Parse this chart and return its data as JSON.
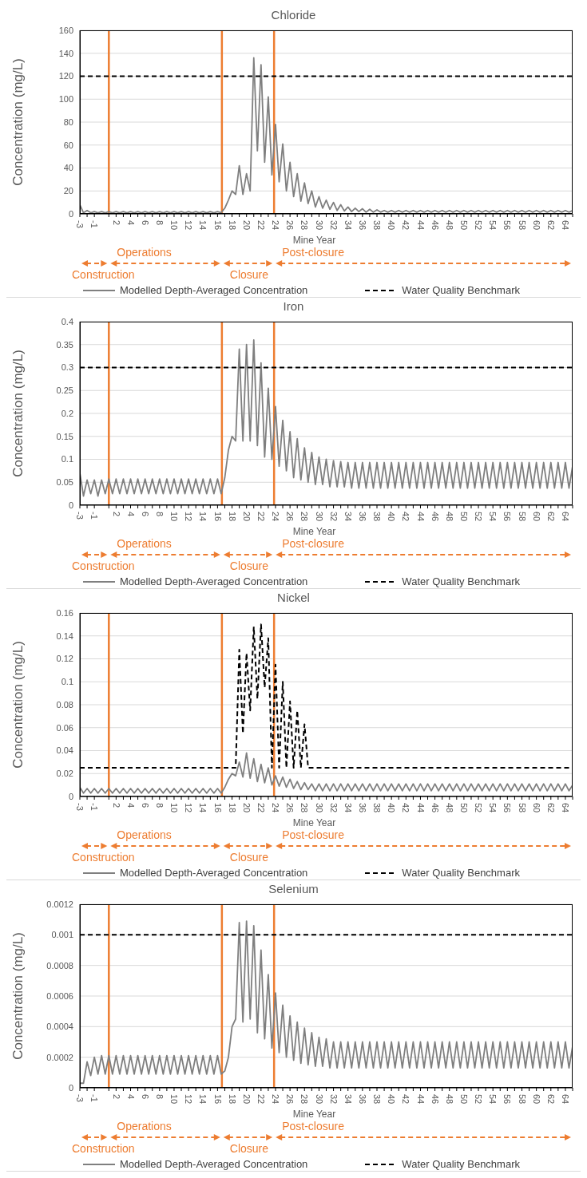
{
  "chart_data": [
    {
      "type": "line",
      "title": "Chloride",
      "xlabel": "Mine Year",
      "ylabel": "Concentration (mg/L)",
      "xlim": [
        -3,
        65
      ],
      "ylim": [
        0,
        160
      ],
      "yticks": [
        0,
        20,
        40,
        60,
        80,
        100,
        120,
        140,
        160
      ],
      "grid": "y",
      "legend": "bottom",
      "xticks": [
        -3,
        {
          "value": -2,
          "label": null
        },
        -1,
        {
          "value": 1,
          "label": null
        },
        2,
        {
          "value": 3,
          "label": null
        },
        4,
        {
          "value": 5,
          "label": null
        },
        6,
        {
          "value": 7,
          "label": null
        },
        8,
        {
          "value": 9,
          "label": null
        },
        10,
        {
          "value": 11,
          "label": null
        },
        12,
        {
          "value": 13,
          "label": null
        },
        14,
        {
          "value": 15,
          "label": null
        },
        16,
        {
          "value": 17,
          "label": null
        },
        18,
        {
          "value": 19,
          "label": null
        },
        20,
        {
          "value": 21,
          "label": null
        },
        22,
        {
          "value": 23,
          "label": null
        },
        24,
        {
          "value": 25,
          "label": null
        },
        26,
        {
          "value": 27,
          "label": null
        },
        28,
        {
          "value": 29,
          "label": null
        },
        30,
        {
          "value": 31,
          "label": null
        },
        32,
        {
          "value": 33,
          "label": null
        },
        34,
        {
          "value": 35,
          "label": null
        },
        36,
        {
          "value": 37,
          "label": null
        },
        38,
        {
          "value": 39,
          "label": null
        },
        40,
        {
          "value": 41,
          "label": null
        },
        42,
        {
          "value": 43,
          "label": null
        },
        44,
        {
          "value": 45,
          "label": null
        },
        46,
        {
          "value": 47,
          "label": null
        },
        48,
        {
          "value": 49,
          "label": null
        },
        50,
        {
          "value": 51,
          "label": null
        },
        52,
        {
          "value": 53,
          "label": null
        },
        54,
        {
          "value": 55,
          "label": null
        },
        56,
        {
          "value": 57,
          "label": null
        },
        58,
        {
          "value": 59,
          "label": null
        },
        60,
        {
          "value": 61,
          "label": null
        },
        62,
        {
          "value": 63,
          "label": null
        },
        64,
        {
          "value": 65,
          "label": null
        }
      ],
      "x": [
        -3,
        -2.5,
        -2,
        -1.5,
        -1,
        -0.5,
        0,
        0.5,
        1,
        1.5,
        2,
        2.5,
        3,
        3.5,
        4,
        4.5,
        5,
        5.5,
        6,
        6.5,
        7,
        7.5,
        8,
        8.5,
        9,
        9.5,
        10,
        10.5,
        11,
        11.5,
        12,
        12.5,
        13,
        13.5,
        14,
        14.5,
        15,
        15.5,
        16,
        16.5,
        17,
        17.5,
        18,
        18.5,
        19,
        19.5,
        20,
        20.5,
        21,
        21.5,
        22,
        22.5,
        23,
        23.5,
        24,
        24.5,
        25,
        25.5,
        26,
        26.5,
        27,
        27.5,
        28,
        28.5,
        29,
        29.5,
        30,
        30.5,
        31,
        31.5,
        32,
        32.5,
        33,
        33.5,
        34,
        34.5,
        35,
        35.5,
        36,
        36.5,
        37,
        37.5,
        38,
        38.5,
        39,
        39.5,
        40,
        40.5,
        41,
        41.5,
        42,
        42.5,
        43,
        43.5,
        44,
        44.5,
        45,
        45.5,
        46,
        46.5,
        47,
        47.5,
        48,
        48.5,
        49,
        49.5,
        50,
        50.5,
        51,
        51.5,
        52,
        52.5,
        53,
        53.5,
        54,
        54.5,
        55,
        55.5,
        56,
        56.5,
        57,
        57.5,
        58,
        58.5,
        59,
        59.5,
        60,
        60.5,
        61,
        61.5,
        62,
        62.5,
        63,
        63.5,
        64,
        64.5,
        65
      ],
      "series": [
        {
          "name": "Modelled Depth-Averaged Concentration",
          "color": "#7f7f7f",
          "line_style": "solid",
          "values": [
            8,
            1,
            3,
            1,
            2,
            1,
            2,
            1,
            2,
            1,
            2,
            1,
            2,
            1,
            2,
            1,
            2,
            1,
            2,
            1,
            2,
            1,
            2,
            1,
            2,
            1,
            2,
            1,
            2,
            1,
            2,
            1,
            2,
            1,
            2,
            1,
            2,
            1,
            2,
            1,
            5,
            12,
            20,
            17,
            42,
            17,
            35,
            20,
            136,
            55,
            130,
            45,
            102,
            34,
            78,
            28,
            61,
            20,
            45,
            15,
            35,
            11,
            27,
            9,
            20,
            6,
            15,
            5,
            12,
            4,
            10,
            3,
            8,
            2.5,
            6,
            2,
            5,
            2,
            4.5,
            1.5,
            4,
            1.5,
            3.5,
            1.5,
            3,
            1.5,
            3,
            1.5,
            3,
            1.5,
            3,
            1.5,
            3,
            1.5,
            3,
            1.5,
            3,
            1.5,
            3,
            1.5,
            3,
            1.5,
            3,
            1.5,
            3,
            1.5,
            3,
            1.5,
            3,
            1.5,
            3,
            1.5,
            3,
            1.5,
            3,
            1.5,
            3,
            1.5,
            3,
            1.5,
            3,
            1.5,
            3,
            1.5,
            3,
            1.5,
            3,
            1.5,
            3,
            1.5,
            3,
            1.5,
            3,
            1.5,
            3,
            1.5,
            3
          ]
        },
        {
          "name": "Water Quality Benchmark",
          "color": "#000000",
          "line_style": "dashed",
          "x": [
            -3,
            65
          ],
          "values": [
            120,
            120
          ]
        }
      ],
      "ref_lines": [
        {
          "axis": "x",
          "value": 1,
          "color": "#ed7d31"
        },
        {
          "axis": "x",
          "value": 16.6,
          "color": "#ed7d31"
        },
        {
          "axis": "x",
          "value": 23.8,
          "color": "#ed7d31"
        }
      ],
      "annotations": [
        "Construction",
        "Operations",
        "Closure",
        "Post-closure"
      ]
    },
    {
      "type": "line",
      "title": "Iron",
      "xlabel": "Mine Year",
      "ylabel": "Concentration (mg/L)",
      "xlim": [
        -3,
        65
      ],
      "ylim": [
        0,
        0.4
      ],
      "yticks": [
        0,
        0.05,
        0.1,
        0.15,
        0.2,
        0.25,
        0.3,
        0.35,
        0.4
      ],
      "grid": "y",
      "legend": "bottom",
      "xticks": [
        -3,
        {
          "value": -2,
          "label": null
        },
        -1,
        {
          "value": 1,
          "label": null
        },
        2,
        {
          "value": 3,
          "label": null
        },
        4,
        {
          "value": 5,
          "label": null
        },
        6,
        {
          "value": 7,
          "label": null
        },
        8,
        {
          "value": 9,
          "label": null
        },
        10,
        {
          "value": 11,
          "label": null
        },
        12,
        {
          "value": 13,
          "label": null
        },
        14,
        {
          "value": 15,
          "label": null
        },
        16,
        {
          "value": 17,
          "label": null
        },
        18,
        {
          "value": 19,
          "label": null
        },
        20,
        {
          "value": 21,
          "label": null
        },
        22,
        {
          "value": 23,
          "label": null
        },
        24,
        {
          "value": 25,
          "label": null
        },
        26,
        {
          "value": 27,
          "label": null
        },
        28,
        {
          "value": 29,
          "label": null
        },
        30,
        {
          "value": 31,
          "label": null
        },
        32,
        {
          "value": 33,
          "label": null
        },
        34,
        {
          "value": 35,
          "label": null
        },
        36,
        {
          "value": 37,
          "label": null
        },
        38,
        {
          "value": 39,
          "label": null
        },
        40,
        {
          "value": 41,
          "label": null
        },
        42,
        {
          "value": 43,
          "label": null
        },
        44,
        {
          "value": 45,
          "label": null
        },
        46,
        {
          "value": 47,
          "label": null
        },
        48,
        {
          "value": 49,
          "label": null
        },
        50,
        {
          "value": 51,
          "label": null
        },
        52,
        {
          "value": 53,
          "label": null
        },
        54,
        {
          "value": 55,
          "label": null
        },
        56,
        {
          "value": 57,
          "label": null
        },
        58,
        {
          "value": 59,
          "label": null
        },
        60,
        {
          "value": 61,
          "label": null
        },
        62,
        {
          "value": 63,
          "label": null
        },
        64,
        {
          "value": 65,
          "label": null
        }
      ],
      "x": [
        -3,
        -2.5,
        -2,
        -1.5,
        -1,
        -0.5,
        0,
        0.5,
        1,
        1.5,
        2,
        2.5,
        3,
        3.5,
        4,
        4.5,
        5,
        5.5,
        6,
        6.5,
        7,
        7.5,
        8,
        8.5,
        9,
        9.5,
        10,
        10.5,
        11,
        11.5,
        12,
        12.5,
        13,
        13.5,
        14,
        14.5,
        15,
        15.5,
        16,
        16.5,
        17,
        17.5,
        18,
        18.5,
        19,
        19.5,
        20,
        20.5,
        21,
        21.5,
        22,
        22.5,
        23,
        23.5,
        24,
        24.5,
        25,
        25.5,
        26,
        26.5,
        27,
        27.5,
        28,
        28.5,
        29,
        29.5,
        30,
        30.5,
        31,
        31.5,
        32,
        32.5,
        33,
        33.5,
        34,
        34.5,
        35,
        35.5,
        36,
        36.5,
        37,
        37.5,
        38,
        38.5,
        39,
        39.5,
        40,
        40.5,
        41,
        41.5,
        42,
        42.5,
        43,
        43.5,
        44,
        44.5,
        45,
        45.5,
        46,
        46.5,
        47,
        47.5,
        48,
        48.5,
        49,
        49.5,
        50,
        50.5,
        51,
        51.5,
        52,
        52.5,
        53,
        53.5,
        54,
        54.5,
        55,
        55.5,
        56,
        56.5,
        57,
        57.5,
        58,
        58.5,
        59,
        59.5,
        60,
        60.5,
        61,
        61.5,
        62,
        62.5,
        63,
        63.5,
        64,
        64.5,
        65
      ],
      "series": [
        {
          "name": "Modelled Depth-Averaged Concentration",
          "color": "#7f7f7f",
          "line_style": "solid",
          "values": [
            0.07,
            0.02,
            0.055,
            0.025,
            0.055,
            0.02,
            0.055,
            0.025,
            0.057,
            0.025,
            0.057,
            0.025,
            0.057,
            0.025,
            0.057,
            0.025,
            0.057,
            0.025,
            0.057,
            0.025,
            0.057,
            0.025,
            0.057,
            0.025,
            0.057,
            0.025,
            0.057,
            0.025,
            0.057,
            0.025,
            0.057,
            0.025,
            0.057,
            0.025,
            0.057,
            0.025,
            0.057,
            0.025,
            0.057,
            0.025,
            0.06,
            0.12,
            0.15,
            0.14,
            0.34,
            0.14,
            0.35,
            0.14,
            0.36,
            0.13,
            0.31,
            0.105,
            0.255,
            0.1,
            0.215,
            0.085,
            0.185,
            0.075,
            0.16,
            0.06,
            0.145,
            0.055,
            0.125,
            0.05,
            0.115,
            0.045,
            0.105,
            0.045,
            0.1,
            0.04,
            0.097,
            0.04,
            0.095,
            0.04,
            0.093,
            0.037,
            0.093,
            0.037,
            0.093,
            0.037,
            0.093,
            0.037,
            0.093,
            0.037,
            0.093,
            0.037,
            0.093,
            0.037,
            0.093,
            0.037,
            0.093,
            0.037,
            0.093,
            0.037,
            0.093,
            0.037,
            0.093,
            0.037,
            0.093,
            0.037,
            0.093,
            0.037,
            0.093,
            0.037,
            0.093,
            0.037,
            0.093,
            0.037,
            0.093,
            0.037,
            0.093,
            0.037,
            0.093,
            0.037,
            0.093,
            0.037,
            0.093,
            0.037,
            0.093,
            0.037,
            0.093,
            0.037,
            0.093,
            0.037,
            0.093,
            0.037,
            0.093,
            0.037,
            0.093,
            0.037,
            0.093,
            0.037,
            0.093,
            0.037,
            0.093,
            0.037,
            0.085
          ]
        },
        {
          "name": "Water Quality Benchmark",
          "color": "#000000",
          "line_style": "dashed",
          "x": [
            -3,
            65
          ],
          "values": [
            0.3,
            0.3
          ]
        }
      ],
      "ref_lines": [
        {
          "axis": "x",
          "value": 1,
          "color": "#ed7d31"
        },
        {
          "axis": "x",
          "value": 16.6,
          "color": "#ed7d31"
        },
        {
          "axis": "x",
          "value": 23.8,
          "color": "#ed7d31"
        }
      ],
      "annotations": [
        "Construction",
        "Operations",
        "Closure",
        "Post-closure"
      ]
    },
    {
      "type": "line",
      "title": "Nickel",
      "xlabel": "Mine Year",
      "ylabel": "Concentration (mg/L)",
      "xlim": [
        -3,
        65
      ],
      "ylim": [
        0,
        0.16
      ],
      "yticks": [
        0,
        0.02,
        0.04,
        0.06,
        0.08,
        0.1,
        0.12,
        0.14,
        0.16
      ],
      "grid": "y",
      "legend": "bottom",
      "xticks": [
        -3,
        {
          "value": -2,
          "label": null
        },
        -1,
        {
          "value": 1,
          "label": null
        },
        2,
        {
          "value": 3,
          "label": null
        },
        4,
        {
          "value": 5,
          "label": null
        },
        6,
        {
          "value": 7,
          "label": null
        },
        8,
        {
          "value": 9,
          "label": null
        },
        10,
        {
          "value": 11,
          "label": null
        },
        12,
        {
          "value": 13,
          "label": null
        },
        14,
        {
          "value": 15,
          "label": null
        },
        16,
        {
          "value": 17,
          "label": null
        },
        18,
        {
          "value": 19,
          "label": null
        },
        20,
        {
          "value": 21,
          "label": null
        },
        22,
        {
          "value": 23,
          "label": null
        },
        24,
        {
          "value": 25,
          "label": null
        },
        26,
        {
          "value": 27,
          "label": null
        },
        28,
        {
          "value": 29,
          "label": null
        },
        30,
        {
          "value": 31,
          "label": null
        },
        32,
        {
          "value": 33,
          "label": null
        },
        34,
        {
          "value": 35,
          "label": null
        },
        36,
        {
          "value": 37,
          "label": null
        },
        38,
        {
          "value": 39,
          "label": null
        },
        40,
        {
          "value": 41,
          "label": null
        },
        42,
        {
          "value": 43,
          "label": null
        },
        44,
        {
          "value": 45,
          "label": null
        },
        46,
        {
          "value": 47,
          "label": null
        },
        48,
        {
          "value": 49,
          "label": null
        },
        50,
        {
          "value": 51,
          "label": null
        },
        52,
        {
          "value": 53,
          "label": null
        },
        54,
        {
          "value": 55,
          "label": null
        },
        56,
        {
          "value": 57,
          "label": null
        },
        58,
        {
          "value": 59,
          "label": null
        },
        60,
        {
          "value": 61,
          "label": null
        },
        62,
        {
          "value": 63,
          "label": null
        },
        64,
        {
          "value": 65,
          "label": null
        }
      ],
      "x": [
        -3,
        -2.5,
        -2,
        -1.5,
        -1,
        -0.5,
        0,
        0.5,
        1,
        1.5,
        2,
        2.5,
        3,
        3.5,
        4,
        4.5,
        5,
        5.5,
        6,
        6.5,
        7,
        7.5,
        8,
        8.5,
        9,
        9.5,
        10,
        10.5,
        11,
        11.5,
        12,
        12.5,
        13,
        13.5,
        14,
        14.5,
        15,
        15.5,
        16,
        16.5,
        17,
        17.5,
        18,
        18.5,
        19,
        19.5,
        20,
        20.5,
        21,
        21.5,
        22,
        22.5,
        23,
        23.5,
        24,
        24.5,
        25,
        25.5,
        26,
        26.5,
        27,
        27.5,
        28,
        28.5,
        29,
        29.5,
        30,
        30.5,
        31,
        31.5,
        32,
        32.5,
        33,
        33.5,
        34,
        34.5,
        35,
        35.5,
        36,
        36.5,
        37,
        37.5,
        38,
        38.5,
        39,
        39.5,
        40,
        40.5,
        41,
        41.5,
        42,
        42.5,
        43,
        43.5,
        44,
        44.5,
        45,
        45.5,
        46,
        46.5,
        47,
        47.5,
        48,
        48.5,
        49,
        49.5,
        50,
        50.5,
        51,
        51.5,
        52,
        52.5,
        53,
        53.5,
        54,
        54.5,
        55,
        55.5,
        56,
        56.5,
        57,
        57.5,
        58,
        58.5,
        59,
        59.5,
        60,
        60.5,
        61,
        61.5,
        62,
        62.5,
        63,
        63.5,
        64,
        64.5,
        65
      ],
      "series": [
        {
          "name": "Modelled Depth-Averaged Concentration",
          "color": "#7f7f7f",
          "line_style": "solid",
          "values": [
            0.008,
            0.003,
            0.007,
            0.003,
            0.007,
            0.003,
            0.007,
            0.003,
            0.007,
            0.003,
            0.007,
            0.003,
            0.007,
            0.003,
            0.007,
            0.003,
            0.007,
            0.003,
            0.007,
            0.003,
            0.007,
            0.003,
            0.007,
            0.003,
            0.007,
            0.003,
            0.007,
            0.003,
            0.007,
            0.003,
            0.007,
            0.003,
            0.007,
            0.003,
            0.007,
            0.003,
            0.007,
            0.003,
            0.007,
            0.003,
            0.008,
            0.015,
            0.02,
            0.018,
            0.03,
            0.017,
            0.038,
            0.016,
            0.033,
            0.013,
            0.028,
            0.012,
            0.025,
            0.01,
            0.018,
            0.009,
            0.017,
            0.008,
            0.015,
            0.007,
            0.013,
            0.006,
            0.012,
            0.006,
            0.011,
            0.005,
            0.011,
            0.005,
            0.011,
            0.005,
            0.011,
            0.005,
            0.011,
            0.005,
            0.011,
            0.005,
            0.011,
            0.005,
            0.011,
            0.005,
            0.011,
            0.005,
            0.011,
            0.005,
            0.011,
            0.005,
            0.011,
            0.005,
            0.011,
            0.005,
            0.011,
            0.005,
            0.011,
            0.005,
            0.011,
            0.005,
            0.011,
            0.005,
            0.011,
            0.005,
            0.011,
            0.005,
            0.011,
            0.005,
            0.011,
            0.005,
            0.011,
            0.005,
            0.011,
            0.005,
            0.011,
            0.005,
            0.011,
            0.005,
            0.011,
            0.005,
            0.011,
            0.005,
            0.011,
            0.005,
            0.011,
            0.005,
            0.011,
            0.005,
            0.011,
            0.005,
            0.011,
            0.005,
            0.011,
            0.005,
            0.011,
            0.005,
            0.011,
            0.005,
            0.011,
            0.005,
            0.01
          ]
        },
        {
          "name": "Water Quality Benchmark",
          "color": "#000000",
          "line_style": "dashed",
          "x": [
            -3,
            18.5,
            19,
            19.5,
            20,
            20.5,
            21,
            21.5,
            22,
            22.5,
            23,
            23.5,
            24,
            24.5,
            25,
            25.5,
            26,
            26.5,
            27,
            27.5,
            28,
            28.5,
            65
          ],
          "values": [
            0.025,
            0.025,
            0.128,
            0.055,
            0.125,
            0.075,
            0.148,
            0.085,
            0.15,
            0.095,
            0.138,
            0.025,
            0.115,
            0.025,
            0.1,
            0.025,
            0.083,
            0.025,
            0.075,
            0.025,
            0.063,
            0.025,
            0.025
          ]
        }
      ],
      "ref_lines": [
        {
          "axis": "x",
          "value": 1,
          "color": "#ed7d31"
        },
        {
          "axis": "x",
          "value": 16.6,
          "color": "#ed7d31"
        },
        {
          "axis": "x",
          "value": 23.8,
          "color": "#ed7d31"
        }
      ],
      "annotations": [
        "Construction",
        "Operations",
        "Closure",
        "Post-closure"
      ]
    },
    {
      "type": "line",
      "title": "Selenium",
      "xlabel": "Mine Year",
      "ylabel": "Concentration (mg/L)",
      "xlim": [
        -3,
        65
      ],
      "ylim": [
        0,
        0.0012
      ],
      "yticks": [
        0,
        0.0002,
        0.0004,
        0.0006,
        0.0008,
        0.001,
        0.0012
      ],
      "grid": "y",
      "legend": "bottom",
      "xticks": [
        -3,
        {
          "value": -2,
          "label": null
        },
        -1,
        {
          "value": 1,
          "label": null
        },
        2,
        {
          "value": 3,
          "label": null
        },
        4,
        {
          "value": 5,
          "label": null
        },
        6,
        {
          "value": 7,
          "label": null
        },
        8,
        {
          "value": 9,
          "label": null
        },
        10,
        {
          "value": 11,
          "label": null
        },
        12,
        {
          "value": 13,
          "label": null
        },
        14,
        {
          "value": 15,
          "label": null
        },
        16,
        {
          "value": 17,
          "label": null
        },
        18,
        {
          "value": 19,
          "label": null
        },
        20,
        {
          "value": 21,
          "label": null
        },
        22,
        {
          "value": 23,
          "label": null
        },
        24,
        {
          "value": 25,
          "label": null
        },
        26,
        {
          "value": 27,
          "label": null
        },
        28,
        {
          "value": 29,
          "label": null
        },
        30,
        {
          "value": 31,
          "label": null
        },
        32,
        {
          "value": 33,
          "label": null
        },
        34,
        {
          "value": 35,
          "label": null
        },
        36,
        {
          "value": 37,
          "label": null
        },
        38,
        {
          "value": 39,
          "label": null
        },
        40,
        {
          "value": 41,
          "label": null
        },
        42,
        {
          "value": 43,
          "label": null
        },
        44,
        {
          "value": 45,
          "label": null
        },
        46,
        {
          "value": 47,
          "label": null
        },
        48,
        {
          "value": 49,
          "label": null
        },
        50,
        {
          "value": 51,
          "label": null
        },
        52,
        {
          "value": 53,
          "label": null
        },
        54,
        {
          "value": 55,
          "label": null
        },
        56,
        {
          "value": 57,
          "label": null
        },
        58,
        {
          "value": 59,
          "label": null
        },
        60,
        {
          "value": 61,
          "label": null
        },
        62,
        {
          "value": 63,
          "label": null
        },
        64,
        {
          "value": 65,
          "label": null
        }
      ],
      "x": [
        -3,
        -2.5,
        -2,
        -1.5,
        -1,
        -0.5,
        0,
        0.5,
        1,
        1.5,
        2,
        2.5,
        3,
        3.5,
        4,
        4.5,
        5,
        5.5,
        6,
        6.5,
        7,
        7.5,
        8,
        8.5,
        9,
        9.5,
        10,
        10.5,
        11,
        11.5,
        12,
        12.5,
        13,
        13.5,
        14,
        14.5,
        15,
        15.5,
        16,
        16.5,
        17,
        17.5,
        18,
        18.5,
        19,
        19.5,
        20,
        20.5,
        21,
        21.5,
        22,
        22.5,
        23,
        23.5,
        24,
        24.5,
        25,
        25.5,
        26,
        26.5,
        27,
        27.5,
        28,
        28.5,
        29,
        29.5,
        30,
        30.5,
        31,
        31.5,
        32,
        32.5,
        33,
        33.5,
        34,
        34.5,
        35,
        35.5,
        36,
        36.5,
        37,
        37.5,
        38,
        38.5,
        39,
        39.5,
        40,
        40.5,
        41,
        41.5,
        42,
        42.5,
        43,
        43.5,
        44,
        44.5,
        45,
        45.5,
        46,
        46.5,
        47,
        47.5,
        48,
        48.5,
        49,
        49.5,
        50,
        50.5,
        51,
        51.5,
        52,
        52.5,
        53,
        53.5,
        54,
        54.5,
        55,
        55.5,
        56,
        56.5,
        57,
        57.5,
        58,
        58.5,
        59,
        59.5,
        60,
        60.5,
        61,
        61.5,
        62,
        62.5,
        63,
        63.5,
        64,
        64.5,
        65
      ],
      "series": [
        {
          "name": "Modelled Depth-Averaged Concentration",
          "color": "#7f7f7f",
          "line_style": "solid",
          "values": [
            3e-05,
            3e-05,
            0.00017,
            8e-05,
            0.0002,
            9e-05,
            0.00021,
            9e-05,
            0.00021,
            9e-05,
            0.00021,
            9e-05,
            0.00021,
            9e-05,
            0.00021,
            9e-05,
            0.00021,
            9e-05,
            0.00021,
            9e-05,
            0.00021,
            9e-05,
            0.00021,
            9e-05,
            0.00021,
            9e-05,
            0.00021,
            9e-05,
            0.00021,
            9e-05,
            0.00021,
            9e-05,
            0.00021,
            9e-05,
            0.00021,
            9e-05,
            0.00021,
            9e-05,
            0.00021,
            9e-05,
            0.00011,
            0.0002,
            0.0004,
            0.00045,
            0.00108,
            0.00043,
            0.00109,
            0.00045,
            0.00106,
            0.00036,
            0.0009,
            0.00032,
            0.00074,
            0.00026,
            0.00062,
            0.00023,
            0.00054,
            0.0002,
            0.00047,
            0.00018,
            0.00043,
            0.00016,
            0.00039,
            0.00015,
            0.00036,
            0.00014,
            0.00033,
            0.00014,
            0.00032,
            0.00013,
            0.0003,
            0.00013,
            0.0003,
            0.00013,
            0.0003,
            0.00013,
            0.0003,
            0.00013,
            0.0003,
            0.00013,
            0.0003,
            0.00013,
            0.0003,
            0.00013,
            0.0003,
            0.00013,
            0.0003,
            0.00013,
            0.0003,
            0.00013,
            0.0003,
            0.00013,
            0.0003,
            0.00013,
            0.0003,
            0.00013,
            0.0003,
            0.00013,
            0.0003,
            0.00013,
            0.0003,
            0.00013,
            0.0003,
            0.00013,
            0.0003,
            0.00013,
            0.0003,
            0.00013,
            0.0003,
            0.00013,
            0.0003,
            0.00013,
            0.0003,
            0.00013,
            0.0003,
            0.00013,
            0.0003,
            0.00013,
            0.0003,
            0.00013,
            0.0003,
            0.00013,
            0.0003,
            0.00013,
            0.0003,
            0.00013,
            0.0003,
            0.00013,
            0.0003,
            0.00013,
            0.0003,
            0.00013,
            0.0003,
            0.00013,
            0.0003,
            0.00013,
            0.00027
          ]
        },
        {
          "name": "Water Quality Benchmark",
          "color": "#000000",
          "line_style": "dashed",
          "x": [
            -3,
            65
          ],
          "values": [
            0.001,
            0.001
          ]
        }
      ],
      "ref_lines": [
        {
          "axis": "x",
          "value": 1,
          "color": "#ed7d31"
        },
        {
          "axis": "x",
          "value": 16.6,
          "color": "#ed7d31"
        },
        {
          "axis": "x",
          "value": 23.8,
          "color": "#ed7d31"
        }
      ],
      "annotations": [
        "Construction",
        "Operations",
        "Closure",
        "Post-closure"
      ]
    }
  ]
}
